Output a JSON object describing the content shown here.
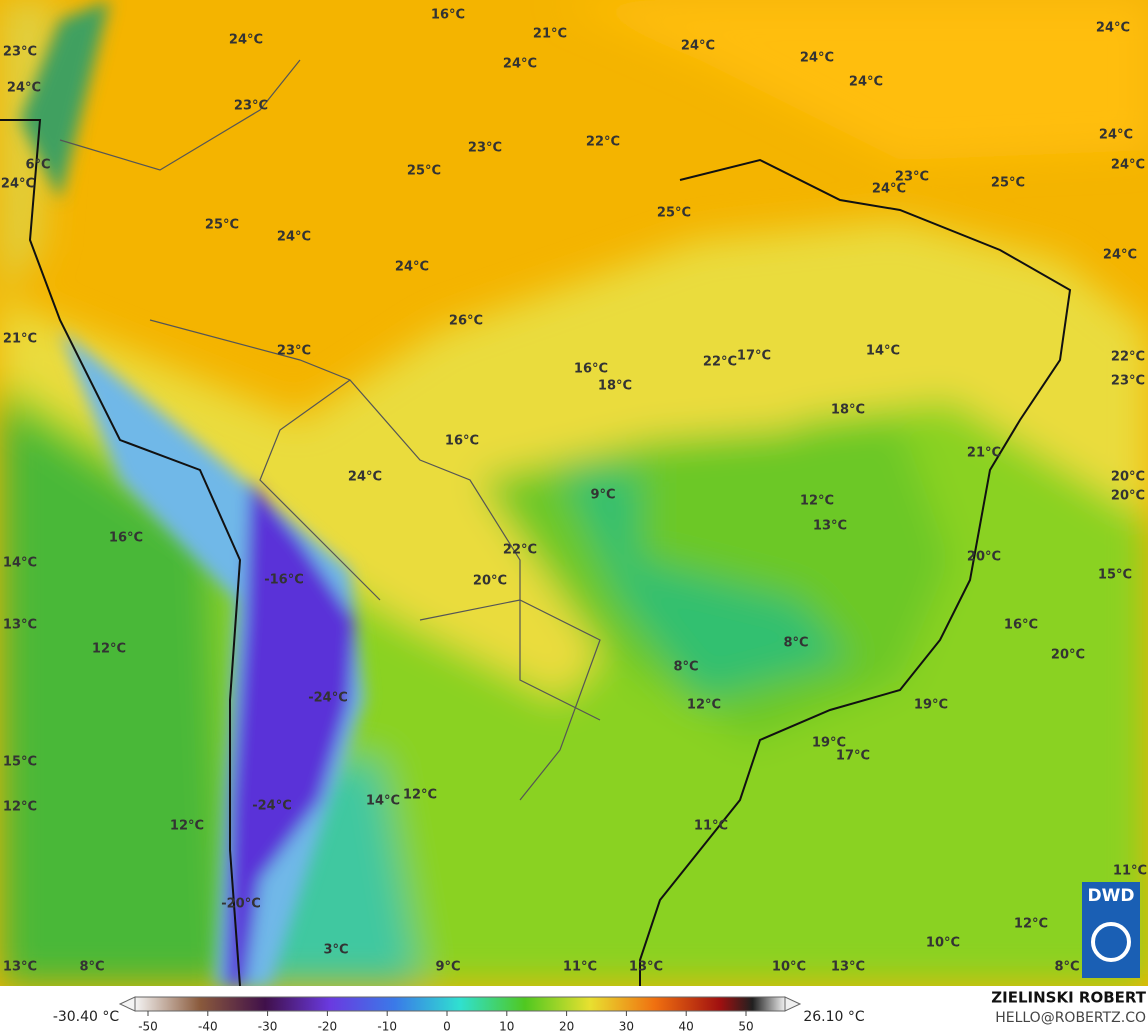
{
  "map": {
    "labels": [
      "16°C",
      "21°C",
      "24°C",
      "24°C",
      "23°C",
      "24°C",
      "24°C",
      "24°C",
      "24°C",
      "24°C",
      "23°C",
      "23°C",
      "22°C",
      "24°C",
      "24°C",
      "6°C",
      "24°C",
      "25°C",
      "23°C",
      "24°C",
      "25°C",
      "25°C",
      "25°C",
      "24°C",
      "24°C",
      "24°C",
      "26°C",
      "21°C",
      "23°C",
      "16°C",
      "22°C",
      "17°C",
      "14°C",
      "22°C",
      "18°C",
      "23°C",
      "18°C",
      "16°C",
      "21°C",
      "24°C",
      "20°C",
      "20°C",
      "9°C",
      "12°C",
      "13°C",
      "16°C",
      "22°C",
      "20°C",
      "14°C",
      "-16°C",
      "20°C",
      "15°C",
      "13°C",
      "16°C",
      "12°C",
      "8°C",
      "20°C",
      "8°C",
      "-24°C",
      "12°C",
      "19°C",
      "19°C",
      "17°C",
      "15°C",
      "14°C",
      "12°C",
      "-24°C",
      "12°C",
      "12°C",
      "11°C",
      "11°C",
      "-20°C",
      "12°C",
      "3°C",
      "10°C",
      "13°C",
      "8°C",
      "9°C",
      "11°C",
      "13°C",
      "10°C",
      "13°C",
      "8°C"
    ]
  },
  "colorbar": {
    "min_label": "-30.40 °C",
    "max_label": "26.10 °C",
    "ticks": [
      -50,
      -40,
      -30,
      -20,
      -10,
      0,
      10,
      20,
      30,
      40,
      50
    ]
  },
  "credits": {
    "author": "ZIELINSKI ROBERT",
    "email": "HELLO@ROBERTZ.CO",
    "logo": "DWD"
  }
}
